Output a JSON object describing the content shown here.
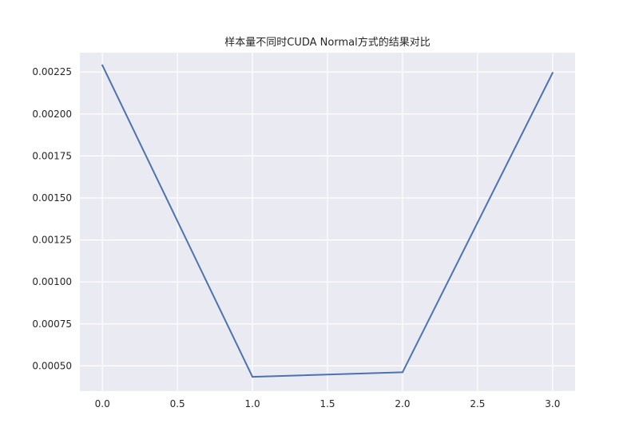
{
  "chart_data": {
    "type": "line",
    "title": "样本量不同时CUDA Normal方式的结果对比",
    "xlabel": "",
    "ylabel": "",
    "x": [
      0,
      1,
      2,
      3
    ],
    "series": [
      {
        "values": [
          0.00229,
          0.000435,
          0.000462,
          0.002245
        ],
        "color": "#4c72b0"
      }
    ],
    "xlim": [
      -0.15,
      3.15
    ],
    "ylim": [
      0.00035,
      0.002365
    ],
    "xticks": [
      0.0,
      0.5,
      1.0,
      1.5,
      2.0,
      2.5,
      3.0
    ],
    "xtick_labels": [
      "0.0",
      "0.5",
      "1.0",
      "1.5",
      "2.0",
      "2.5",
      "3.0"
    ],
    "yticks": [
      0.0005,
      0.00075,
      0.001,
      0.00125,
      0.0015,
      0.00175,
      0.002,
      0.00225
    ],
    "ytick_labels": [
      "0.00050",
      "0.00075",
      "0.00100",
      "0.00125",
      "0.00150",
      "0.00175",
      "0.00200",
      "0.00225"
    ],
    "grid": true,
    "background": "#eaeaf2",
    "legend": "none"
  }
}
